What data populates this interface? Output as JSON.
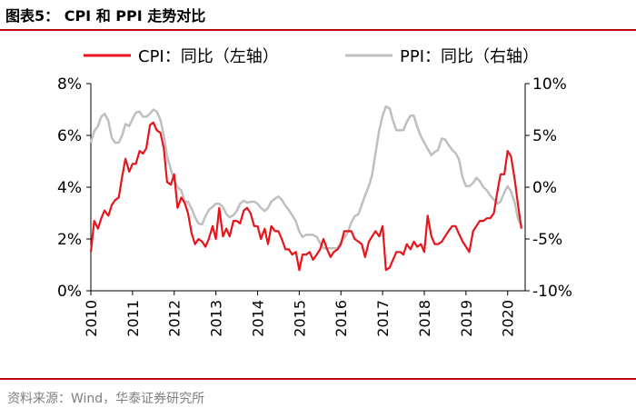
{
  "header": {
    "title": "图表5：  CPI 和 PPI 走势对比"
  },
  "source": "资料来源：Wind，华泰证券研究所",
  "colors": {
    "cpi": "#e8141b",
    "ppi": "#bfbfbf",
    "rule": "#c00000",
    "axis": "#000000",
    "source": "#7f7f7f"
  },
  "chart_data": {
    "type": "line",
    "title": "CPI 和 PPI 走势对比",
    "x_ticks": [
      "2010",
      "2011",
      "2012",
      "2013",
      "2014",
      "2015",
      "2016",
      "2017",
      "2018",
      "2019",
      "2020"
    ],
    "x_range": [
      2010.0,
      2020.42
    ],
    "y_left": {
      "ticks": [
        "0%",
        "2%",
        "4%",
        "6%",
        "8%"
      ],
      "range": [
        0,
        8
      ]
    },
    "y_right": {
      "ticks": [
        "-10%",
        "-5%",
        "0%",
        "5%",
        "10%"
      ],
      "range": [
        -10,
        10
      ]
    },
    "legend": {
      "position": "top",
      "entries": [
        "CPI：同比（左轴）",
        "PPI：同比（右轴）"
      ]
    },
    "series": [
      {
        "name": "CPI：同比（左轴）",
        "axis": "left",
        "x": [
          2010.0,
          2010.08,
          2010.17,
          2010.25,
          2010.33,
          2010.42,
          2010.5,
          2010.58,
          2010.67,
          2010.75,
          2010.83,
          2010.92,
          2011.0,
          2011.08,
          2011.17,
          2011.25,
          2011.33,
          2011.42,
          2011.5,
          2011.58,
          2011.67,
          2011.75,
          2011.83,
          2011.92,
          2012.0,
          2012.08,
          2012.17,
          2012.25,
          2012.33,
          2012.42,
          2012.5,
          2012.58,
          2012.67,
          2012.75,
          2012.83,
          2012.92,
          2013.0,
          2013.08,
          2013.17,
          2013.25,
          2013.33,
          2013.42,
          2013.5,
          2013.58,
          2013.67,
          2013.75,
          2013.83,
          2013.92,
          2014.0,
          2014.08,
          2014.17,
          2014.25,
          2014.33,
          2014.42,
          2014.5,
          2014.58,
          2014.67,
          2014.75,
          2014.83,
          2014.92,
          2015.0,
          2015.08,
          2015.17,
          2015.25,
          2015.33,
          2015.42,
          2015.5,
          2015.58,
          2015.67,
          2015.75,
          2015.83,
          2015.92,
          2016.0,
          2016.08,
          2016.17,
          2016.25,
          2016.33,
          2016.42,
          2016.5,
          2016.58,
          2016.67,
          2016.75,
          2016.83,
          2016.92,
          2017.0,
          2017.08,
          2017.17,
          2017.25,
          2017.33,
          2017.42,
          2017.5,
          2017.58,
          2017.67,
          2017.75,
          2017.83,
          2017.92,
          2018.0,
          2018.08,
          2018.17,
          2018.25,
          2018.33,
          2018.42,
          2018.5,
          2018.58,
          2018.67,
          2018.75,
          2018.83,
          2018.92,
          2019.0,
          2019.08,
          2019.17,
          2019.25,
          2019.33,
          2019.42,
          2019.5,
          2019.58,
          2019.67,
          2019.75,
          2019.83,
          2019.92,
          2020.0,
          2020.08,
          2020.17,
          2020.25,
          2020.33
        ],
        "values": [
          1.5,
          2.7,
          2.4,
          2.8,
          3.1,
          2.9,
          3.3,
          3.5,
          3.6,
          4.4,
          5.1,
          4.6,
          4.9,
          4.9,
          5.4,
          5.3,
          5.5,
          6.4,
          6.5,
          6.2,
          6.1,
          5.5,
          4.2,
          4.1,
          4.5,
          3.2,
          3.6,
          3.4,
          3.0,
          2.2,
          1.8,
          2.0,
          1.9,
          1.7,
          2.0,
          2.5,
          2.0,
          3.2,
          2.1,
          2.4,
          2.1,
          2.7,
          2.7,
          2.6,
          3.1,
          3.2,
          3.0,
          2.5,
          2.5,
          2.0,
          2.4,
          1.8,
          2.5,
          2.3,
          2.3,
          2.0,
          1.6,
          1.6,
          1.4,
          1.5,
          0.8,
          1.4,
          1.4,
          1.5,
          1.2,
          1.4,
          1.6,
          2.0,
          1.6,
          1.3,
          1.5,
          1.6,
          1.8,
          2.3,
          2.3,
          2.3,
          2.0,
          1.9,
          1.8,
          1.3,
          1.9,
          2.1,
          2.3,
          2.1,
          2.5,
          0.8,
          0.9,
          1.2,
          1.5,
          1.5,
          1.4,
          1.8,
          1.6,
          1.9,
          1.7,
          1.8,
          1.5,
          2.9,
          2.1,
          1.8,
          1.8,
          1.9,
          2.1,
          2.3,
          2.5,
          2.5,
          2.2,
          1.9,
          1.7,
          1.5,
          2.3,
          2.5,
          2.7,
          2.7,
          2.8,
          2.8,
          3.0,
          3.8,
          4.5,
          4.5,
          5.4,
          5.2,
          4.3,
          3.3,
          2.4
        ]
      },
      {
        "name": "PPI：同比（右轴）",
        "axis": "right",
        "x": [
          2010.0,
          2010.08,
          2010.17,
          2010.25,
          2010.33,
          2010.42,
          2010.5,
          2010.58,
          2010.67,
          2010.75,
          2010.83,
          2010.92,
          2011.0,
          2011.08,
          2011.17,
          2011.25,
          2011.33,
          2011.42,
          2011.5,
          2011.58,
          2011.67,
          2011.75,
          2011.83,
          2011.92,
          2012.0,
          2012.08,
          2012.17,
          2012.25,
          2012.33,
          2012.42,
          2012.5,
          2012.58,
          2012.67,
          2012.75,
          2012.83,
          2012.92,
          2013.0,
          2013.08,
          2013.17,
          2013.25,
          2013.33,
          2013.42,
          2013.5,
          2013.58,
          2013.67,
          2013.75,
          2013.83,
          2013.92,
          2014.0,
          2014.08,
          2014.17,
          2014.25,
          2014.33,
          2014.42,
          2014.5,
          2014.58,
          2014.67,
          2014.75,
          2014.83,
          2014.92,
          2015.0,
          2015.08,
          2015.17,
          2015.25,
          2015.33,
          2015.42,
          2015.5,
          2015.58,
          2015.67,
          2015.75,
          2015.83,
          2015.92,
          2016.0,
          2016.08,
          2016.17,
          2016.25,
          2016.33,
          2016.42,
          2016.5,
          2016.58,
          2016.67,
          2016.75,
          2016.83,
          2016.92,
          2017.0,
          2017.08,
          2017.17,
          2017.25,
          2017.33,
          2017.42,
          2017.5,
          2017.58,
          2017.67,
          2017.75,
          2017.83,
          2017.92,
          2018.0,
          2018.08,
          2018.17,
          2018.25,
          2018.33,
          2018.42,
          2018.5,
          2018.58,
          2018.67,
          2018.75,
          2018.83,
          2018.92,
          2019.0,
          2019.08,
          2019.17,
          2019.25,
          2019.33,
          2019.42,
          2019.5,
          2019.58,
          2019.67,
          2019.75,
          2019.83,
          2019.92,
          2020.0,
          2020.08,
          2020.17,
          2020.25,
          2020.33
        ],
        "values": [
          4.3,
          5.4,
          5.9,
          6.8,
          7.1,
          6.4,
          4.8,
          4.3,
          4.3,
          5.0,
          6.1,
          5.9,
          6.6,
          7.2,
          7.3,
          6.8,
          6.8,
          7.1,
          7.5,
          7.3,
          6.5,
          5.0,
          3.0,
          1.7,
          0.7,
          0.0,
          -0.3,
          -1.4,
          -1.4,
          -2.1,
          -2.9,
          -3.5,
          -3.6,
          -2.8,
          -2.2,
          -1.9,
          -1.6,
          -1.6,
          -1.9,
          -2.6,
          -2.9,
          -2.7,
          -2.3,
          -1.6,
          -1.3,
          -1.5,
          -1.4,
          -1.4,
          -1.6,
          -2.0,
          -2.3,
          -2.0,
          -1.4,
          -1.1,
          -0.9,
          -1.2,
          -1.8,
          -2.2,
          -2.7,
          -3.3,
          -4.3,
          -4.8,
          -4.6,
          -4.6,
          -4.6,
          -4.8,
          -5.4,
          -5.9,
          -5.9,
          -5.9,
          -5.9,
          -5.9,
          -5.3,
          -4.9,
          -4.3,
          -3.4,
          -2.8,
          -2.6,
          -1.7,
          -0.8,
          0.1,
          1.2,
          3.3,
          5.5,
          6.9,
          7.8,
          7.6,
          6.4,
          5.5,
          5.5,
          5.5,
          6.3,
          6.9,
          6.9,
          5.8,
          4.9,
          4.3,
          3.7,
          3.1,
          3.4,
          3.6,
          4.7,
          4.6,
          4.1,
          3.6,
          3.3,
          2.7,
          0.9,
          0.1,
          0.1,
          0.4,
          0.9,
          0.6,
          0.0,
          -0.3,
          -0.8,
          -1.2,
          -1.6,
          -1.4,
          -0.5,
          0.1,
          -0.4,
          -1.5,
          -3.1,
          -3.7
        ]
      }
    ]
  }
}
